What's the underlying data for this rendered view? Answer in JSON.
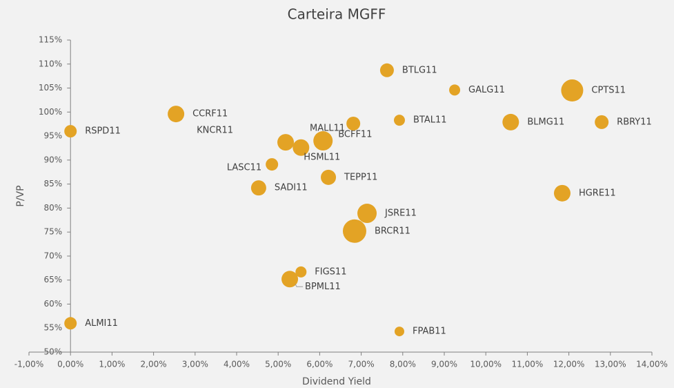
{
  "chart_data": {
    "type": "bubble",
    "title": "Carteira MGFF",
    "x_label": "Dividend Yield",
    "y_label": "P/VP",
    "color": "#e3a325",
    "labels": [
      "RSPD11",
      "CCRF11",
      "ALMI11",
      "KNCR11",
      "BCFF11",
      "MALL11",
      "HSML11",
      "LASC11",
      "SADI11",
      "TEPP11",
      "BTLG11",
      "GALG11",
      "BTAL11",
      "CPTS11",
      "BLMG11",
      "RBRY11",
      "HGRE11",
      "JSRE11",
      "BRCR11",
      "FIGS11",
      "BPML11",
      "FPAB11"
    ],
    "x": [
      0,
      2.54,
      0,
      5.18,
      6.08,
      6.81,
      5.55,
      4.85,
      4.53,
      6.21,
      7.62,
      9.25,
      7.92,
      12.08,
      10.6,
      12.79,
      11.84,
      7.14,
      6.84,
      5.55,
      5.28,
      7.92
    ],
    "values": [
      96.0,
      99.6,
      56.0,
      93.7,
      94.0,
      97.6,
      92.6,
      89.1,
      84.2,
      86.4,
      108.7,
      104.6,
      98.3,
      104.5,
      97.9,
      97.9,
      83.1,
      78.9,
      75.2,
      66.7,
      65.2,
      54.3
    ],
    "sizes": [
      9,
      12,
      9,
      12,
      14,
      10,
      12,
      9,
      11,
      11,
      10,
      8,
      8,
      16,
      12,
      10,
      12,
      14,
      17,
      8,
      12,
      7
    ],
    "xlim": [
      -1,
      14
    ],
    "xticks": [
      {
        "value": -1,
        "label": "-1,00%"
      },
      {
        "value": 0,
        "label": "0,00%"
      },
      {
        "value": 1,
        "label": "1,00%"
      },
      {
        "value": 2,
        "label": "2,00%"
      },
      {
        "value": 3,
        "label": "3,00%"
      },
      {
        "value": 4,
        "label": "4,00%"
      },
      {
        "value": 5,
        "label": "5,00%"
      },
      {
        "value": 6,
        "label": "6,00%"
      },
      {
        "value": 7,
        "label": "7,00%"
      },
      {
        "value": 8,
        "label": "8,00%"
      },
      {
        "value": 9,
        "label": "9,00%"
      },
      {
        "value": 10,
        "label": "10,00%"
      },
      {
        "value": 11,
        "label": "11,00%"
      },
      {
        "value": 12,
        "label": "12,00%"
      },
      {
        "value": 13,
        "label": "13,00%"
      },
      {
        "value": 14,
        "label": "14,00%"
      }
    ],
    "ylim": [
      50,
      115
    ],
    "yticks": [
      {
        "value": 50,
        "label": "50%"
      },
      {
        "value": 55,
        "label": "55%"
      },
      {
        "value": 60,
        "label": "60%"
      },
      {
        "value": 65,
        "label": "65%"
      },
      {
        "value": 70,
        "label": "70%"
      },
      {
        "value": 75,
        "label": "75%"
      },
      {
        "value": 80,
        "label": "80%"
      },
      {
        "value": 85,
        "label": "85%"
      },
      {
        "value": 90,
        "label": "90%"
      },
      {
        "value": 95,
        "label": "95%"
      },
      {
        "value": 100,
        "label": "100%"
      },
      {
        "value": 105,
        "label": "105%"
      },
      {
        "value": 110,
        "label": "110%"
      },
      {
        "value": 115,
        "label": "115%"
      }
    ]
  }
}
